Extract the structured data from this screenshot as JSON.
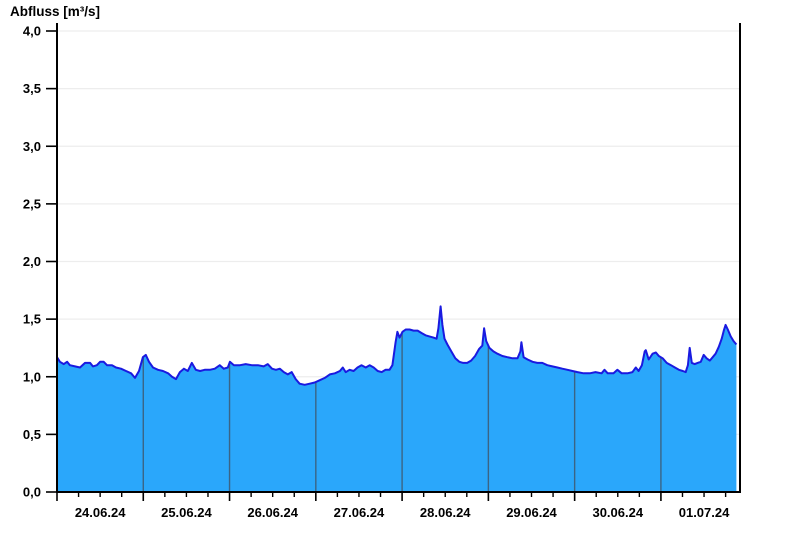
{
  "title": "Abfluss [m³/s]",
  "chart_data": {
    "type": "area",
    "title": "Abfluss [m³/s]",
    "ylabel": "Abfluss [m³/s]",
    "xlabel": "",
    "ylim": [
      0.0,
      4.0
    ],
    "ytick_step": 0.5,
    "ytick_values": [
      0.0,
      0.5,
      1.0,
      1.5,
      2.0,
      2.5,
      3.0,
      3.5,
      4.0
    ],
    "ytick_labels": [
      "0,0",
      "0,5",
      "1,0",
      "1,5",
      "2,0",
      "2,5",
      "3,0",
      "3,5",
      "4,0"
    ],
    "x_unit": "hours since 24.06.24 00:00",
    "x_total_hours": 190,
    "x_tick_labels": [
      "24.06.24",
      "25.06.24",
      "26.06.24",
      "27.06.24",
      "28.06.24",
      "29.06.24",
      "30.06.24",
      "01.07.24"
    ],
    "x_label_center_hours": [
      12,
      36,
      60,
      84,
      108,
      132,
      156,
      180
    ],
    "day_boundary_hours": [
      0,
      24,
      48,
      72,
      96,
      120,
      144,
      168
    ],
    "minor_tick_interval_hours": 6,
    "grid": "horizontal-light",
    "legend": "none",
    "series": [
      {
        "name": "Abfluss",
        "x": [
          0,
          0.8,
          1.9,
          2.8,
          3.6,
          5,
          6.4,
          7.8,
          9.2,
          10,
          11.1,
          12,
          13,
          13.9,
          15.3,
          16.4,
          17.8,
          19.2,
          20.6,
          21.7,
          22.8,
          23.9,
          24.7,
          25.6,
          26.7,
          28.1,
          29.5,
          30.9,
          32,
          33.1,
          34.2,
          35.3,
          36.4,
          37.5,
          38.6,
          39.8,
          41.1,
          42.5,
          43.9,
          45.3,
          46.4,
          47.5,
          48.1,
          49.2,
          50.9,
          52.5,
          54.2,
          55.9,
          57.5,
          58.6,
          59.8,
          60.9,
          62,
          63.1,
          64.2,
          65.3,
          66.4,
          67.5,
          68.9,
          70.3,
          71.7,
          73.1,
          74.5,
          75.9,
          77.3,
          78.7,
          79.5,
          80.3,
          81.4,
          82.5,
          83.6,
          84.7,
          85.9,
          87,
          88.1,
          89.2,
          90.3,
          91.4,
          92.5,
          93.3,
          94.2,
          94.7,
          95.3,
          96.1,
          97,
          98.1,
          99.2,
          100.3,
          101.4,
          102.5,
          103.6,
          104.7,
          105.6,
          106.1,
          106.7,
          107.2,
          107.8,
          108.6,
          109.7,
          110.8,
          111.9,
          113,
          114.1,
          115.2,
          116.3,
          117.4,
          118.3,
          118.8,
          119.4,
          120.3,
          121.4,
          122.5,
          123.9,
          125.3,
          126.7,
          128.1,
          128.9,
          129.2,
          129.8,
          130.9,
          132.3,
          133.6,
          135,
          136.4,
          137.8,
          139.2,
          140.6,
          142,
          143.4,
          144.8,
          146.5,
          148.2,
          149.8,
          151.5,
          152.3,
          153.2,
          154.8,
          155.9,
          157.1,
          158.7,
          160.1,
          161,
          161.8,
          162.7,
          163.5,
          163.8,
          164.6,
          165.7,
          166.6,
          167.4,
          168.5,
          169.6,
          170.8,
          171.9,
          173,
          174.1,
          174.9,
          175.5,
          176,
          176.6,
          177.4,
          178.2,
          179.1,
          179.9,
          180.7,
          181.6,
          182.4,
          183.2,
          184.1,
          184.9,
          185.5,
          186,
          186.6,
          187.4,
          188.2,
          189
        ],
        "values": [
          1.17,
          1.13,
          1.11,
          1.13,
          1.1,
          1.09,
          1.08,
          1.12,
          1.12,
          1.09,
          1.1,
          1.13,
          1.13,
          1.1,
          1.1,
          1.08,
          1.07,
          1.05,
          1.03,
          0.99,
          1.05,
          1.17,
          1.19,
          1.13,
          1.08,
          1.06,
          1.05,
          1.03,
          1.0,
          0.98,
          1.04,
          1.07,
          1.05,
          1.12,
          1.06,
          1.05,
          1.06,
          1.06,
          1.07,
          1.1,
          1.07,
          1.08,
          1.13,
          1.1,
          1.1,
          1.11,
          1.1,
          1.1,
          1.09,
          1.11,
          1.07,
          1.06,
          1.07,
          1.04,
          1.02,
          1.04,
          0.98,
          0.94,
          0.93,
          0.94,
          0.95,
          0.97,
          0.99,
          1.02,
          1.03,
          1.05,
          1.08,
          1.04,
          1.06,
          1.05,
          1.08,
          1.1,
          1.08,
          1.1,
          1.08,
          1.05,
          1.04,
          1.06,
          1.06,
          1.1,
          1.3,
          1.39,
          1.34,
          1.39,
          1.41,
          1.41,
          1.4,
          1.4,
          1.38,
          1.36,
          1.35,
          1.34,
          1.33,
          1.42,
          1.61,
          1.45,
          1.33,
          1.28,
          1.22,
          1.16,
          1.13,
          1.12,
          1.12,
          1.14,
          1.18,
          1.24,
          1.27,
          1.42,
          1.31,
          1.25,
          1.22,
          1.2,
          1.18,
          1.17,
          1.16,
          1.16,
          1.22,
          1.3,
          1.17,
          1.15,
          1.13,
          1.12,
          1.12,
          1.1,
          1.09,
          1.08,
          1.07,
          1.06,
          1.05,
          1.04,
          1.03,
          1.03,
          1.04,
          1.03,
          1.06,
          1.03,
          1.03,
          1.06,
          1.03,
          1.03,
          1.04,
          1.08,
          1.05,
          1.1,
          1.22,
          1.23,
          1.15,
          1.2,
          1.21,
          1.18,
          1.16,
          1.12,
          1.1,
          1.08,
          1.06,
          1.05,
          1.04,
          1.1,
          1.25,
          1.12,
          1.11,
          1.12,
          1.13,
          1.19,
          1.16,
          1.14,
          1.17,
          1.2,
          1.26,
          1.33,
          1.4,
          1.45,
          1.41,
          1.35,
          1.31,
          1.28
        ]
      }
    ],
    "colors": {
      "area_fill": "#2aa7fb",
      "area_line": "#1a1ae0",
      "day_separator": "#3b6484",
      "grid": "#ededed",
      "axis": "#000000",
      "text": "#000000",
      "background": "#ffffff"
    }
  }
}
